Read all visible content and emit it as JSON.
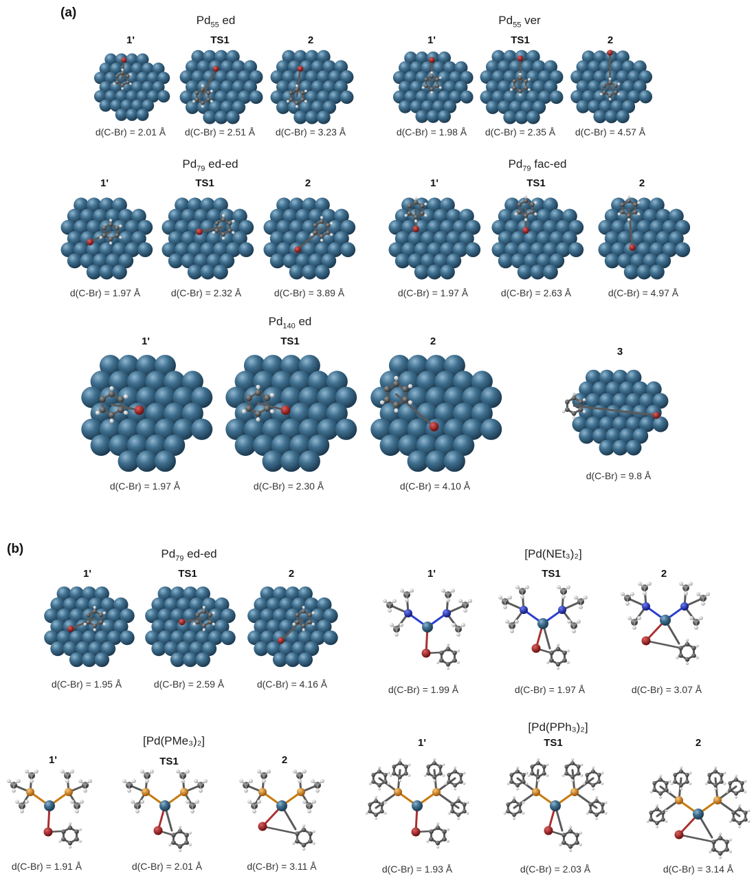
{
  "panels": {
    "a": "(a)",
    "b": "(b)"
  },
  "a": {
    "g1": {
      "title_pre": "Pd",
      "title_sub": "55",
      "title_post": " ed",
      "labels": [
        "1'",
        "TS1",
        "2"
      ],
      "dists": [
        "d(C-Br) = 2.01 Å",
        "d(C-Br) = 2.51 Å",
        "d(C-Br) = 3.23 Å"
      ]
    },
    "g2": {
      "title_pre": "Pd",
      "title_sub": "55",
      "title_post": " ver",
      "labels": [
        "1'",
        "TS1",
        "2"
      ],
      "dists": [
        "d(C-Br) = 1.98 Å",
        "d(C-Br) = 2.35 Å",
        "d(C-Br) = 4.57 Å"
      ]
    },
    "g3": {
      "title_pre": "Pd",
      "title_sub": "79",
      "title_post": " ed-ed",
      "labels": [
        "1'",
        "TS1",
        "2"
      ],
      "dists": [
        "d(C-Br) = 1.97 Å",
        "d(C-Br) = 2.32 Å",
        "d(C-Br) = 3.89 Å"
      ]
    },
    "g4": {
      "title_pre": "Pd",
      "title_sub": "79",
      "title_post": " fac-ed",
      "labels": [
        "1'",
        "TS1",
        "2"
      ],
      "dists": [
        "d(C-Br) = 1.97 Å",
        "d(C-Br) = 2.63 Å",
        "d(C-Br) = 4.97 Å"
      ]
    },
    "g5": {
      "title_pre": "Pd",
      "title_sub": "140",
      "title_post": " ed",
      "labels": [
        "1'",
        "TS1",
        "2",
        "3"
      ],
      "dists": [
        "d(C-Br) = 1.97 Å",
        "d(C-Br) = 2.30 Å",
        "d(C-Br) = 4.10 Å",
        "d(C-Br) = 9.8 Å"
      ]
    }
  },
  "b": {
    "g1": {
      "title_pre": "Pd",
      "title_sub": "79",
      "title_post": " ed-ed",
      "labels": [
        "1'",
        "TS1",
        "2"
      ],
      "dists": [
        "d(C-Br) = 1.95 Å",
        "d(C-Br) = 2.59 Å",
        "d(C-Br) = 4.16 Å"
      ]
    },
    "g2": {
      "title": "[Pd(NEt₃)₂]",
      "labels": [
        "1'",
        "TS1",
        "2"
      ],
      "dists": [
        "d(C-Br) = 1.99 Å",
        "d(C-Br) = 1.97 Å",
        "d(C-Br) = 3.07 Å"
      ]
    },
    "g3": {
      "title": "[Pd(PMe₃)₂]",
      "labels": [
        "1'",
        "TS1",
        "2"
      ],
      "dists": [
        "d(C-Br) = 1.91 Å",
        "d(C-Br) = 2.01 Å",
        "d(C-Br) = 3.11 Å"
      ]
    },
    "g4": {
      "title": "[Pd(PPh₃)₂]",
      "labels": [
        "1'",
        "TS1",
        "2"
      ],
      "dists": [
        "d(C-Br) = 1.93 Å",
        "d(C-Br) = 2.03 Å",
        "d(C-Br) = 3.14 Å"
      ]
    }
  },
  "colors": {
    "pd": "#3f6f8f",
    "pd_highlight": "#8fb6cf",
    "carbon": "#555555",
    "hydrogen": "#e8e8e8",
    "bromine": "#b01e1e",
    "nitrogen": "#1e2fbf",
    "phosphorus": "#e08a14",
    "bond": "#6b6b6b"
  }
}
